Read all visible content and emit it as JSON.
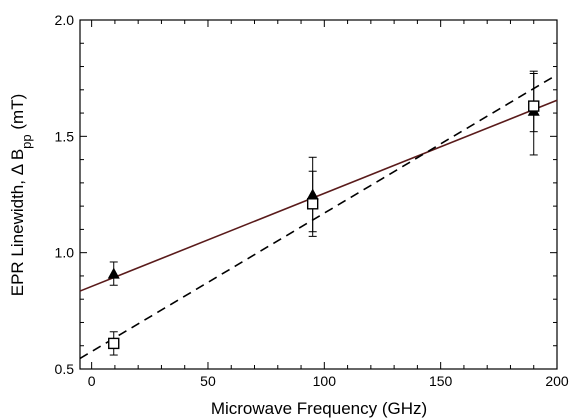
{
  "chart_data": {
    "type": "scatter",
    "title": "",
    "xlabel": "Microwave Frequency (GHz)",
    "ylabel_main": "EPR Linewidth,  Δ B",
    "ylabel_sub": "pp",
    "ylabel_unit": "  (mT)",
    "xlim": [
      -5,
      200
    ],
    "ylim": [
      0.5,
      2.0
    ],
    "x_ticks": [
      0,
      50,
      100,
      150,
      200
    ],
    "x_tick_labels": [
      "0",
      "50",
      "100",
      "150",
      "200"
    ],
    "y_ticks": [
      0.5,
      1.0,
      1.5,
      2.0
    ],
    "y_tick_labels": [
      "0.5",
      "1.0",
      "1.5",
      "2.0"
    ],
    "grid": false,
    "series": [
      {
        "marker": "filled-triangle",
        "points": [
          {
            "x": 9.5,
            "y": 0.91,
            "err_low": 0.05,
            "err_high": 0.05
          },
          {
            "x": 95,
            "y": 1.25,
            "err_low": 0.16,
            "err_high": 0.16
          },
          {
            "x": 190,
            "y": 1.61,
            "err_low": 0.19,
            "err_high": 0.16
          }
        ],
        "fit": {
          "style": "solid",
          "color": "#5a1b1b",
          "intercept": 0.855,
          "slope": 0.004
        }
      },
      {
        "marker": "open-square",
        "points": [
          {
            "x": 9.5,
            "y": 0.61,
            "err_low": 0.05,
            "err_high": 0.05
          },
          {
            "x": 95,
            "y": 1.21,
            "err_low": 0.14,
            "err_high": 0.14
          },
          {
            "x": 190,
            "y": 1.63,
            "err_low": 0.11,
            "err_high": 0.15
          }
        ],
        "fit": {
          "style": "dashed",
          "color": "#000000",
          "intercept": 0.575,
          "slope": 0.00595
        }
      }
    ]
  }
}
